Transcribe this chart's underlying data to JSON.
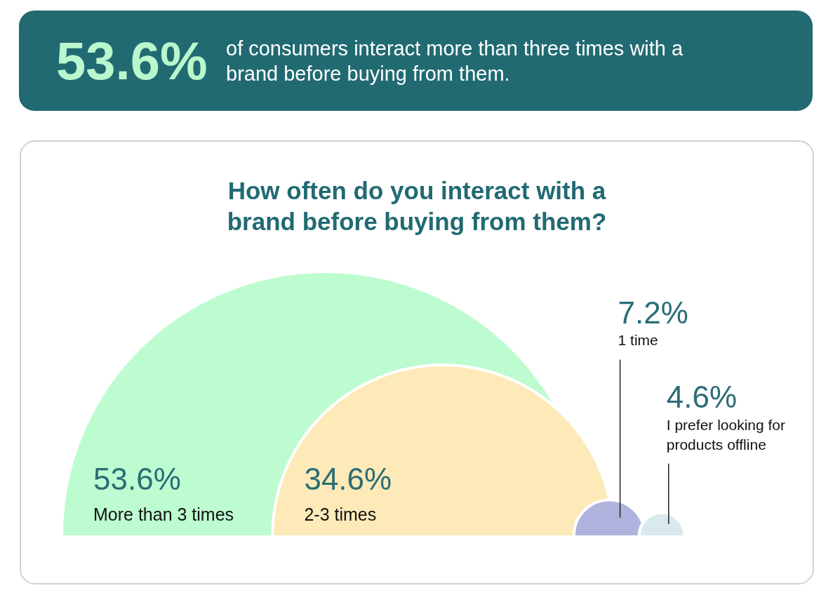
{
  "chart_data": {
    "type": "other",
    "title": "How often do you interact with a brand before buying from them?",
    "categories": [
      "More than 3 times",
      "2-3 times",
      "1 time",
      "I prefer looking for products offline"
    ],
    "values": [
      53.6,
      34.6,
      7.2,
      4.6
    ],
    "colors": [
      "#bdfcd0",
      "#fdeab8",
      "#b0b3dd",
      "#d9eaee"
    ],
    "value_labels": [
      "53.6%",
      "34.6%",
      "7.2%",
      "4.6%"
    ],
    "annotations": [
      "53.6%",
      "of consumers interact more than three times with a brand before buying from them."
    ]
  }
}
